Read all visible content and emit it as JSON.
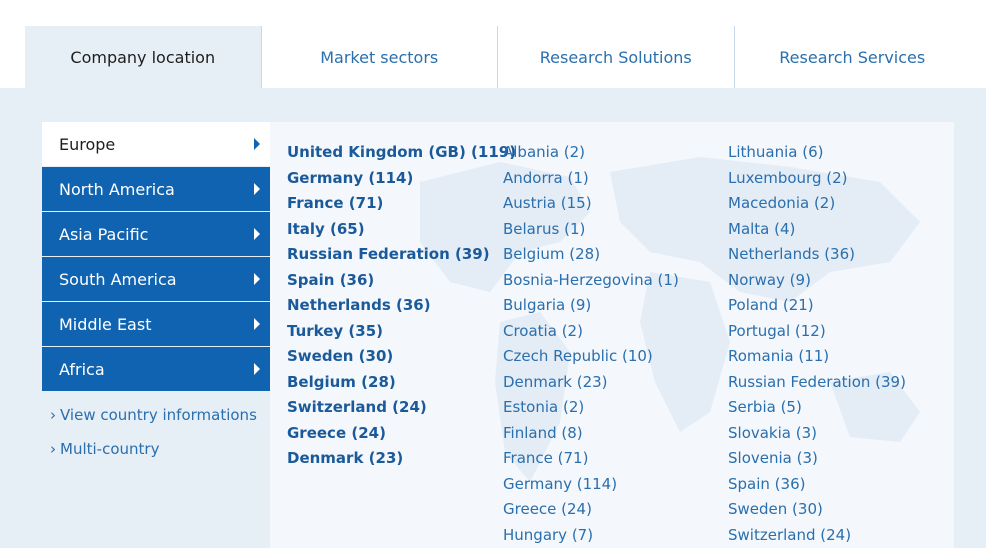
{
  "tabs": [
    {
      "label": "Company location",
      "active": true
    },
    {
      "label": "Market sectors",
      "active": false
    },
    {
      "label": "Research Solutions",
      "active": false
    },
    {
      "label": "Research Services",
      "active": false
    }
  ],
  "regions": [
    {
      "label": "Europe",
      "active": true
    },
    {
      "label": "North America",
      "active": false
    },
    {
      "label": "Asia Pacific",
      "active": false
    },
    {
      "label": "South America",
      "active": false
    },
    {
      "label": "Middle East",
      "active": false
    },
    {
      "label": "Africa",
      "active": false
    }
  ],
  "links": {
    "view_country": "View country informations",
    "multi_country": "Multi-country"
  },
  "top_countries": [
    "United Kingdom (GB) (119)",
    "Germany (114)",
    "France (71)",
    "Italy (65)",
    "Russian Federation (39)",
    "Spain (36)",
    "Netherlands (36)",
    "Turkey (35)",
    "Sweden (30)",
    "Belgium (28)",
    "Switzerland (24)",
    "Greece (24)",
    "Denmark (23)"
  ],
  "countries_col2": [
    "Albania (2)",
    "Andorra (1)",
    "Austria (15)",
    "Belarus (1)",
    "Belgium (28)",
    "Bosnia-Herzegovina (1)",
    "Bulgaria (9)",
    "Croatia (2)",
    "Czech Republic (10)",
    "Denmark (23)",
    "Estonia (2)",
    "Finland (8)",
    "France (71)",
    "Germany (114)",
    "Greece (24)",
    "Hungary (7)"
  ],
  "countries_col3": [
    "Lithuania (6)",
    "Luxembourg (2)",
    "Macedonia (2)",
    "Malta (4)",
    "Netherlands (36)",
    "Norway (9)",
    "Poland (21)",
    "Portugal (12)",
    "Romania (11)",
    "Russian Federation (39)",
    "Serbia (5)",
    "Slovakia (3)",
    "Slovenia (3)",
    "Spain (36)",
    "Sweden (30)",
    "Switzerland (24)"
  ],
  "colors": {
    "primary": "#0f63b0",
    "link": "#2a6fae",
    "panel_bg": "#e6eef6",
    "list_bg": "#f4f7fb"
  }
}
